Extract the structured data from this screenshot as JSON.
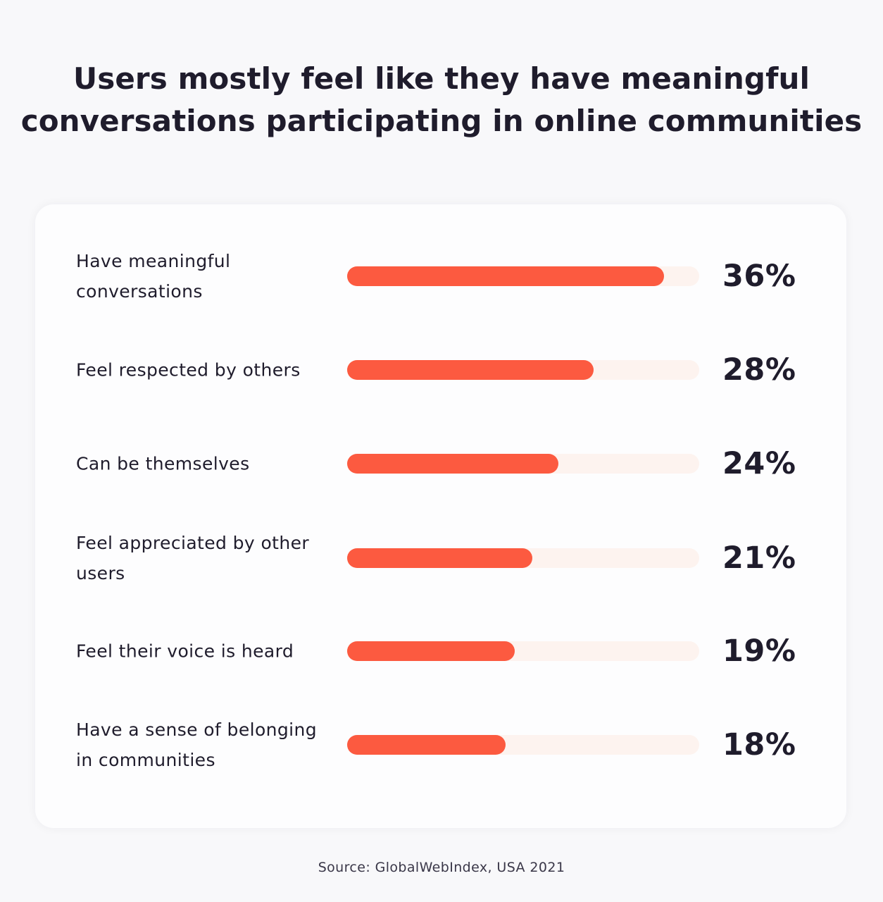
{
  "title_lines": [
    "Users mostly feel like they have meaningful",
    "conversations participating in online communities"
  ],
  "source": "Source: GlobalWebIndex, USA 2021",
  "colors": {
    "bar": "#fc5a40",
    "track": "#fdf3ef",
    "text": "#1f1c2c"
  },
  "chart_data": {
    "type": "bar",
    "orientation": "horizontal",
    "title": "Users mostly feel like they have meaningful conversations participating in online communities",
    "categories": [
      [
        "Have meaningful",
        "conversations"
      ],
      [
        "Feel respected by others"
      ],
      [
        "Can be themselves"
      ],
      [
        "Feel appreciated by other",
        "users"
      ],
      [
        "Feel their voice is heard"
      ],
      [
        "Have a sense of belonging",
        "in communities"
      ]
    ],
    "values": [
      36,
      28,
      24,
      21,
      19,
      18
    ],
    "value_labels": [
      "36%",
      "28%",
      "24%",
      "21%",
      "19%",
      "18%"
    ],
    "unit": "%",
    "xlim": [
      0,
      40
    ]
  }
}
